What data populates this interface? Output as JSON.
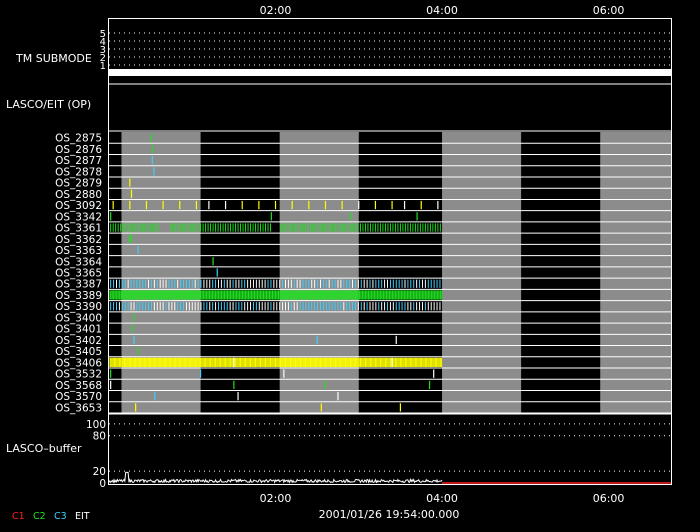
{
  "chart_data": {
    "type": "timeline",
    "x_axis": {
      "ticks": [
        "02:00",
        "04:00",
        "06:00"
      ],
      "tick_hours": [
        2,
        4,
        6
      ],
      "range_hours": [
        0.0,
        6.75
      ]
    },
    "timestamp": "2001/01/26 19:54:00.000",
    "legend": [
      {
        "label": "C1",
        "color": "#ff2020"
      },
      {
        "label": "C2",
        "color": "#20e020"
      },
      {
        "label": "C3",
        "color": "#40d0ff"
      },
      {
        "label": "EIT",
        "color": "#ffffff"
      }
    ],
    "tm_submode": {
      "label": "TM SUBMODE",
      "levels": [
        "5",
        "4",
        "3",
        "2",
        "1"
      ],
      "value": 1
    },
    "lasco_eit_label": "LASCO/EIT (OP)",
    "gray_bands_hours": [
      [
        0.15,
        1.1
      ],
      [
        2.05,
        3.0
      ],
      [
        4.0,
        4.95
      ],
      [
        5.9,
        6.75
      ]
    ],
    "data_end_hours": 4.0,
    "os_rows": [
      {
        "name": "OS_2875",
        "events": [
          [
            0.5,
            "#20e020"
          ]
        ]
      },
      {
        "name": "OS_2876",
        "events": [
          [
            0.52,
            "#20e020"
          ]
        ]
      },
      {
        "name": "OS_2877",
        "events": [
          [
            0.52,
            "#40d0ff"
          ]
        ]
      },
      {
        "name": "OS_2878",
        "events": [
          [
            0.54,
            "#40d0ff"
          ]
        ]
      },
      {
        "name": "OS_2879",
        "events": [
          [
            0.25,
            "#ffff00"
          ]
        ]
      },
      {
        "name": "OS_2880",
        "events": [
          [
            0.27,
            "#ffff00"
          ]
        ]
      },
      {
        "name": "OS_3092",
        "events": [
          [
            0.05,
            "#ffff00"
          ],
          [
            0.25,
            "#ffff00"
          ],
          [
            0.45,
            "#ffff00"
          ],
          [
            0.65,
            "#ffff00"
          ],
          [
            0.85,
            "#ffff00"
          ],
          [
            1.05,
            "#ffff00"
          ],
          [
            1.2,
            "#ffffff"
          ],
          [
            1.4,
            "#ffffff"
          ],
          [
            1.6,
            "#ffff00"
          ],
          [
            1.8,
            "#ffff00"
          ],
          [
            2.0,
            "#ffff00"
          ],
          [
            2.2,
            "#ffff00"
          ],
          [
            2.4,
            "#ffff00"
          ],
          [
            2.6,
            "#ffff00"
          ],
          [
            2.8,
            "#ffff00"
          ],
          [
            3.0,
            "#ffffff"
          ],
          [
            3.2,
            "#ffff00"
          ],
          [
            3.4,
            "#ffff00"
          ],
          [
            3.55,
            "#ffffff"
          ],
          [
            3.75,
            "#ffff00"
          ],
          [
            3.95,
            "#ffffff"
          ]
        ]
      },
      {
        "name": "OS_3342",
        "events": [
          [
            0.02,
            "#20e020"
          ],
          [
            1.95,
            "#20e020"
          ],
          [
            2.9,
            "#20e020"
          ],
          [
            3.7,
            "#20e020"
          ]
        ]
      },
      {
        "name": "OS_3361",
        "density": 0.03,
        "colors": [
          "#20e020"
        ],
        "gaps": [
          [
            0.62,
            0.72
          ],
          [
            1.95,
            2.05
          ]
        ]
      },
      {
        "name": "OS_3362",
        "events": [
          [
            0.25,
            "#20e020"
          ],
          [
            0.27,
            "#20e020"
          ]
        ]
      },
      {
        "name": "OS_3363",
        "events": [
          [
            0.35,
            "#40d0ff"
          ]
        ]
      },
      {
        "name": "OS_3364",
        "events": [
          [
            1.25,
            "#20e020"
          ]
        ]
      },
      {
        "name": "OS_3365",
        "events": [
          [
            1.3,
            "#40d0ff"
          ]
        ]
      },
      {
        "name": "OS_3387",
        "density": 0.035,
        "colors": [
          "#40d0ff",
          "#ffffff"
        ]
      },
      {
        "name": "OS_3389",
        "density": 0.018,
        "colors": [
          "#20e020"
        ],
        "thick": true
      },
      {
        "name": "OS_3390",
        "density": 0.035,
        "colors": [
          "#40d0ff",
          "#ffffff"
        ]
      },
      {
        "name": "OS_3400",
        "events": [
          [
            0.3,
            "#20e020"
          ]
        ]
      },
      {
        "name": "OS_3401",
        "events": [
          [
            0.28,
            "#20e020"
          ]
        ]
      },
      {
        "name": "OS_3402",
        "events": [
          [
            0.3,
            "#40d0ff"
          ],
          [
            2.5,
            "#40d0ff"
          ],
          [
            3.45,
            "#ffffff"
          ]
        ]
      },
      {
        "name": "OS_3405",
        "events": [
          [
            0.35,
            "#20e020"
          ]
        ]
      },
      {
        "name": "OS_3406",
        "density": 0.015,
        "colors": [
          "#ffff00"
        ],
        "thick": true,
        "extra": [
          [
            1.5,
            "#ffffff"
          ],
          [
            3.4,
            "#ffffff"
          ]
        ]
      },
      {
        "name": "OS_3532",
        "events": [
          [
            0.02,
            "#20e020"
          ],
          [
            1.1,
            "#40d0ff"
          ],
          [
            2.1,
            "#ffffff"
          ],
          [
            3.9,
            "#ffffff"
          ]
        ]
      },
      {
        "name": "OS_3568",
        "events": [
          [
            0.02,
            "#ffffff"
          ],
          [
            1.5,
            "#20e020"
          ],
          [
            2.6,
            "#20e020"
          ],
          [
            3.85,
            "#20e020"
          ]
        ]
      },
      {
        "name": "OS_3570",
        "events": [
          [
            0.55,
            "#40d0ff"
          ],
          [
            1.55,
            "#ffffff"
          ],
          [
            2.75,
            "#ffffff"
          ]
        ]
      },
      {
        "name": "OS_3653",
        "events": [
          [
            0.32,
            "#ffff00"
          ],
          [
            2.55,
            "#ffff00"
          ],
          [
            3.5,
            "#ffff00"
          ]
        ]
      }
    ],
    "buffer": {
      "label": "LASCO–buffer",
      "ticks": [
        "100",
        "80",
        "20",
        "0"
      ],
      "tick_values": [
        100,
        80,
        20,
        0
      ],
      "range": [
        0,
        110
      ]
    }
  }
}
